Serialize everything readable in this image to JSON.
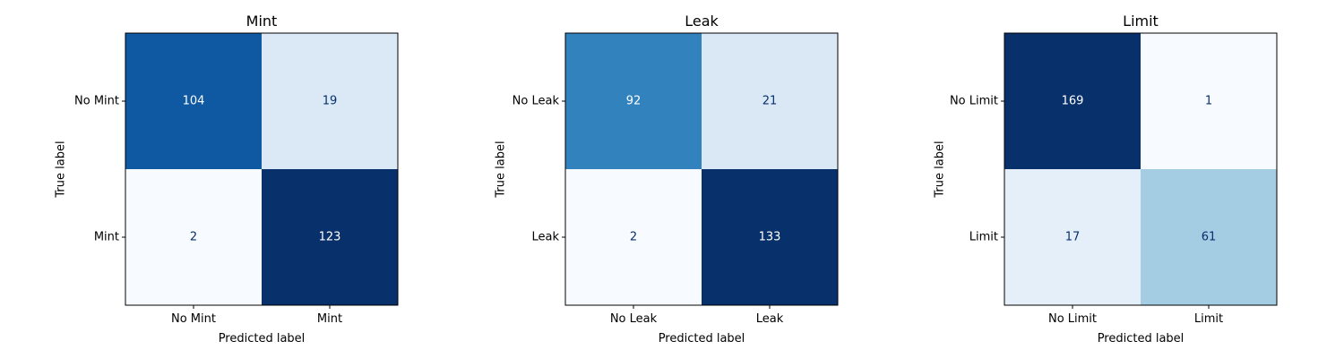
{
  "chart_data": [
    {
      "type": "heatmap",
      "title": "Mint",
      "xlabel": "Predicted label",
      "ylabel": "True label",
      "x_categories": [
        "No Mint",
        "Mint"
      ],
      "y_categories": [
        "No Mint",
        "Mint"
      ],
      "values": [
        [
          104,
          19
        ],
        [
          2,
          123
        ]
      ],
      "colormap": "Blues",
      "grid": false
    },
    {
      "type": "heatmap",
      "title": "Leak",
      "xlabel": "Predicted label",
      "ylabel": "True label",
      "x_categories": [
        "No Leak",
        "Leak"
      ],
      "y_categories": [
        "No Leak",
        "Leak"
      ],
      "values": [
        [
          92,
          21
        ],
        [
          2,
          133
        ]
      ],
      "colormap": "Blues",
      "grid": false
    },
    {
      "type": "heatmap",
      "title": "Limit",
      "xlabel": "Predicted label",
      "ylabel": "True label",
      "x_categories": [
        "No Limit",
        "Limit"
      ],
      "y_categories": [
        "No Limit",
        "Limit"
      ],
      "values": [
        [
          169,
          1
        ],
        [
          17,
          61
        ]
      ],
      "colormap": "Blues",
      "grid": false
    }
  ]
}
